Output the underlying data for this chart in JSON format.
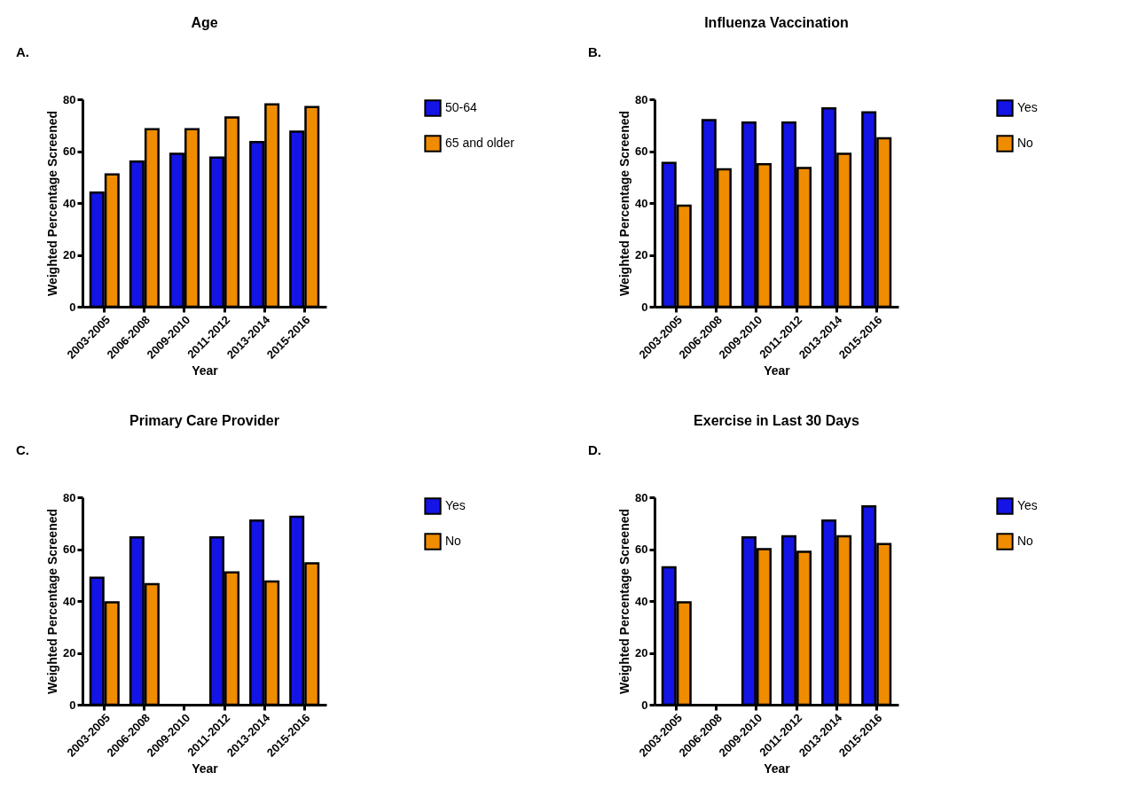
{
  "chart_data": [
    {
      "type": "bar",
      "title": "Age",
      "xlabel": "Year",
      "ylabel": "Weighted Percentage Screened",
      "annotations": [
        "A."
      ],
      "categories": [
        "2003-2005",
        "2006-2008",
        "2009-2010",
        "2011-2012",
        "2013-2014",
        "2015-2016"
      ],
      "ylim": [
        0,
        80
      ],
      "yticks": [
        0,
        20,
        40,
        60,
        80
      ],
      "grid": false,
      "legend": "right",
      "series": [
        {
          "name": "50-64",
          "color": "#1414e6",
          "values": [
            44,
            56,
            59,
            57.5,
            63.5,
            67.5
          ]
        },
        {
          "name": "65 and older",
          "color": "#f08c00",
          "values": [
            51,
            68.5,
            68.5,
            73,
            78,
            77
          ]
        }
      ]
    },
    {
      "type": "bar",
      "title": "Influenza Vaccination",
      "xlabel": "Year",
      "ylabel": "Weighted Percentage Screened",
      "annotations": [
        "B."
      ],
      "categories": [
        "2003-2005",
        "2006-2008",
        "2009-2010",
        "2011-2012",
        "2013-2014",
        "2015-2016"
      ],
      "ylim": [
        0,
        80
      ],
      "yticks": [
        0,
        20,
        40,
        60,
        80
      ],
      "grid": false,
      "legend": "right",
      "series": [
        {
          "name": "Yes",
          "color": "#1414e6",
          "values": [
            55.5,
            72,
            71,
            71,
            76.5,
            75
          ]
        },
        {
          "name": "No",
          "color": "#f08c00",
          "values": [
            39,
            53,
            55,
            53.5,
            59,
            65
          ]
        }
      ]
    },
    {
      "type": "bar",
      "title": "Primary Care Provider",
      "xlabel": "Year",
      "ylabel": "Weighted Percentage Screened",
      "annotations": [
        "C."
      ],
      "categories": [
        "2003-2005",
        "2006-2008",
        "2009-2010",
        "2011-2012",
        "2013-2014",
        "2015-2016"
      ],
      "ylim": [
        0,
        80
      ],
      "yticks": [
        0,
        20,
        40,
        60,
        80
      ],
      "grid": false,
      "legend": "right",
      "series": [
        {
          "name": "Yes",
          "color": "#1414e6",
          "values": [
            49,
            64.5,
            null,
            64.5,
            71,
            72.5
          ]
        },
        {
          "name": "No",
          "color": "#f08c00",
          "values": [
            39.5,
            46.5,
            null,
            51,
            47.5,
            54.5
          ]
        }
      ]
    },
    {
      "type": "bar",
      "title": "Exercise in Last 30 Days",
      "xlabel": "Year",
      "ylabel": "Weighted Percentage Screened",
      "annotations": [
        "D."
      ],
      "categories": [
        "2003-2005",
        "2006-2008",
        "2009-2010",
        "2011-2012",
        "2013-2014",
        "2015-2016"
      ],
      "ylim": [
        0,
        80
      ],
      "yticks": [
        0,
        20,
        40,
        60,
        80
      ],
      "grid": false,
      "legend": "right",
      "series": [
        {
          "name": "Yes",
          "color": "#1414e6",
          "values": [
            53,
            null,
            64.5,
            65,
            71,
            76.5
          ]
        },
        {
          "name": "No",
          "color": "#f08c00",
          "values": [
            39.5,
            null,
            60,
            59,
            65,
            62
          ]
        }
      ]
    }
  ]
}
